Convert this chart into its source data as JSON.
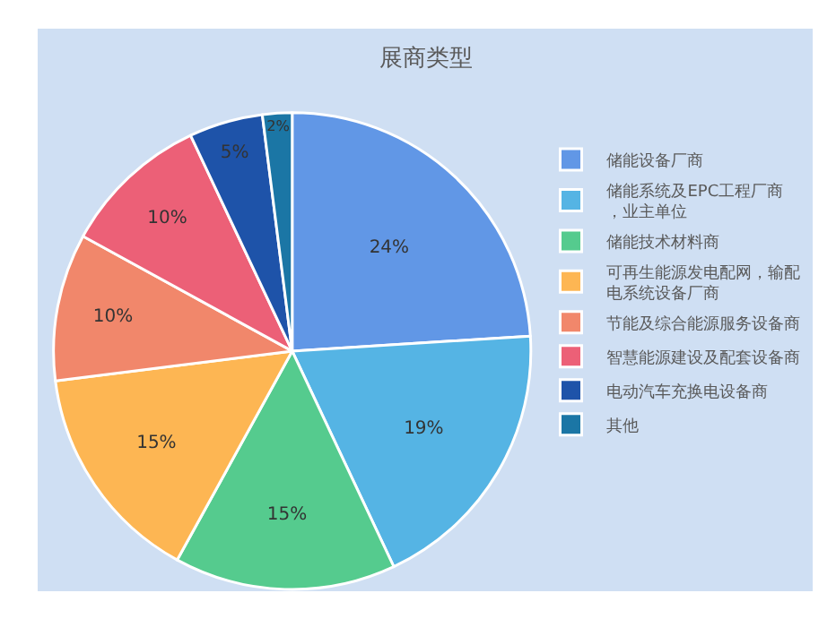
{
  "chart_data": {
    "type": "pie",
    "title": "展商类型",
    "categories": [
      "储能设备厂商",
      "储能系统及EPC工程厂商，业主单位",
      "储能技术材料商",
      "可再生能源发电配网，输配电系统设备厂商",
      "节能及综合能源服务设备商",
      "智慧能源建设及配套设备商",
      "电动汽车充换电设备商",
      "其他"
    ],
    "values": [
      24,
      19,
      15,
      15,
      10,
      10,
      5,
      2
    ],
    "colors": [
      "#6197e6",
      "#55b4e4",
      "#55cb8e",
      "#fdb653",
      "#f1876b",
      "#ec6077",
      "#1e53a9",
      "#1b76a5"
    ],
    "value_labels": [
      "24%",
      "19%",
      "15%",
      "15%",
      "10%",
      "10%",
      "5%",
      "2%"
    ],
    "legend": "right"
  }
}
